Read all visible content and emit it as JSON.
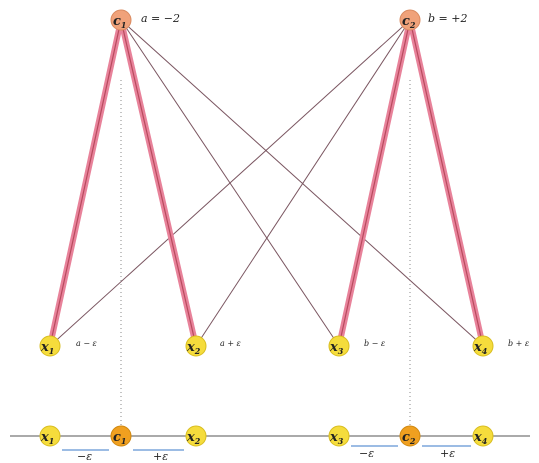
{
  "diagram": {
    "top_nodes": [
      {
        "id": "c1",
        "label": "c",
        "sub": "1",
        "param": "a = −2",
        "color": "#f0a27a"
      },
      {
        "id": "c2",
        "label": "c",
        "sub": "2",
        "param": "b = +2",
        "color": "#f0a27a"
      }
    ],
    "mid_nodes": [
      {
        "id": "x1",
        "label": "x",
        "sub": "1",
        "annotation": "a − ε",
        "color": "#f5dc3c"
      },
      {
        "id": "x2",
        "label": "x",
        "sub": "2",
        "annotation": "a + ε",
        "color": "#f5dc3c"
      },
      {
        "id": "x3",
        "label": "x",
        "sub": "3",
        "annotation": "b − ε",
        "color": "#f5dc3c"
      },
      {
        "id": "x4",
        "label": "x",
        "sub": "4",
        "annotation": "b + ε",
        "color": "#f5dc3c"
      }
    ],
    "bottom_nodes": [
      {
        "id": "bx1",
        "label": "x",
        "sub": "1",
        "color": "#f5dc3c"
      },
      {
        "id": "bc1",
        "label": "c",
        "sub": "1",
        "color": "#f0a020"
      },
      {
        "id": "bx2",
        "label": "x",
        "sub": "2",
        "color": "#f5dc3c"
      },
      {
        "id": "bx3",
        "label": "x",
        "sub": "3",
        "color": "#f5dc3c"
      },
      {
        "id": "bc2",
        "label": "c",
        "sub": "2",
        "color": "#f0a020"
      },
      {
        "id": "bx4",
        "label": "x",
        "sub": "4",
        "color": "#f5dc3c"
      }
    ],
    "offset_labels": [
      "−ε",
      "+ε",
      "−ε",
      "+ε"
    ],
    "colors": {
      "strong_edge": "#e8829a",
      "strong_edge_core": "#b84a5e",
      "weak_edge": "#7a5560",
      "axis": "#555555",
      "dotted": "#888888",
      "offset_underline": "#3a78c8"
    }
  }
}
